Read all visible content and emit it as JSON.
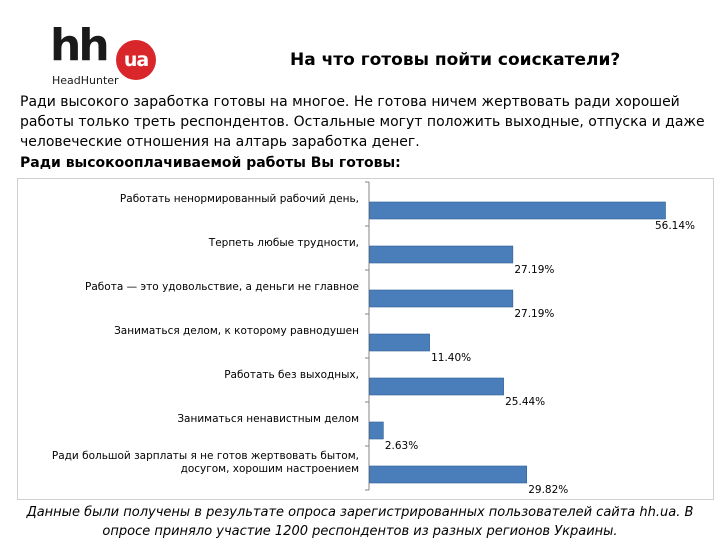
{
  "logo": {
    "text": "hh",
    "badge": "ua",
    "subtitle": "HeadHunter"
  },
  "slide": {
    "title": "На что готовы пойти соискатели?",
    "intro": "Ради высокого заработка готовы на многое. Не готова ничем жертвовать ради хорошей работы только треть респондентов. Остальные могут положить выходные, отпуска и даже человеческие отношения на алтарь заработка денег.",
    "question": "Ради высокооплачиваемой работы Вы готовы:",
    "footer": "Данные были получены в результате опроса зарегистрированных пользователей сайта hh.ua. В опросе приняло участие 1200 респондентов из разных регионов Украины."
  },
  "colors": {
    "bar": "#4a7ebb",
    "bar_border": "#2f5f96",
    "logo_red": "#d8262a",
    "axis": "#868686"
  },
  "chart_data": {
    "type": "bar",
    "orientation": "horizontal",
    "categories": [
      "Работать ненормированный рабочий день,",
      "Терпеть любые трудности,",
      "Работа — это удовольствие, а деньги не главное",
      "Заниматься делом, к которому равнодушен",
      "Работать без выходных,",
      "Заниматься ненавистным делом",
      "Ради большой зарплаты я не готов жертвовать бытом, досугом, хорошим настроением"
    ],
    "values": [
      56.14,
      27.19,
      27.19,
      11.4,
      25.44,
      2.63,
      29.82
    ],
    "data_labels": [
      "56.14%",
      "27.19%",
      "27.19%",
      "11.40%",
      "25.44%",
      "2.63%",
      "29.82%"
    ],
    "xlim": [
      0,
      56.14
    ],
    "grid": false,
    "legend": "none"
  }
}
